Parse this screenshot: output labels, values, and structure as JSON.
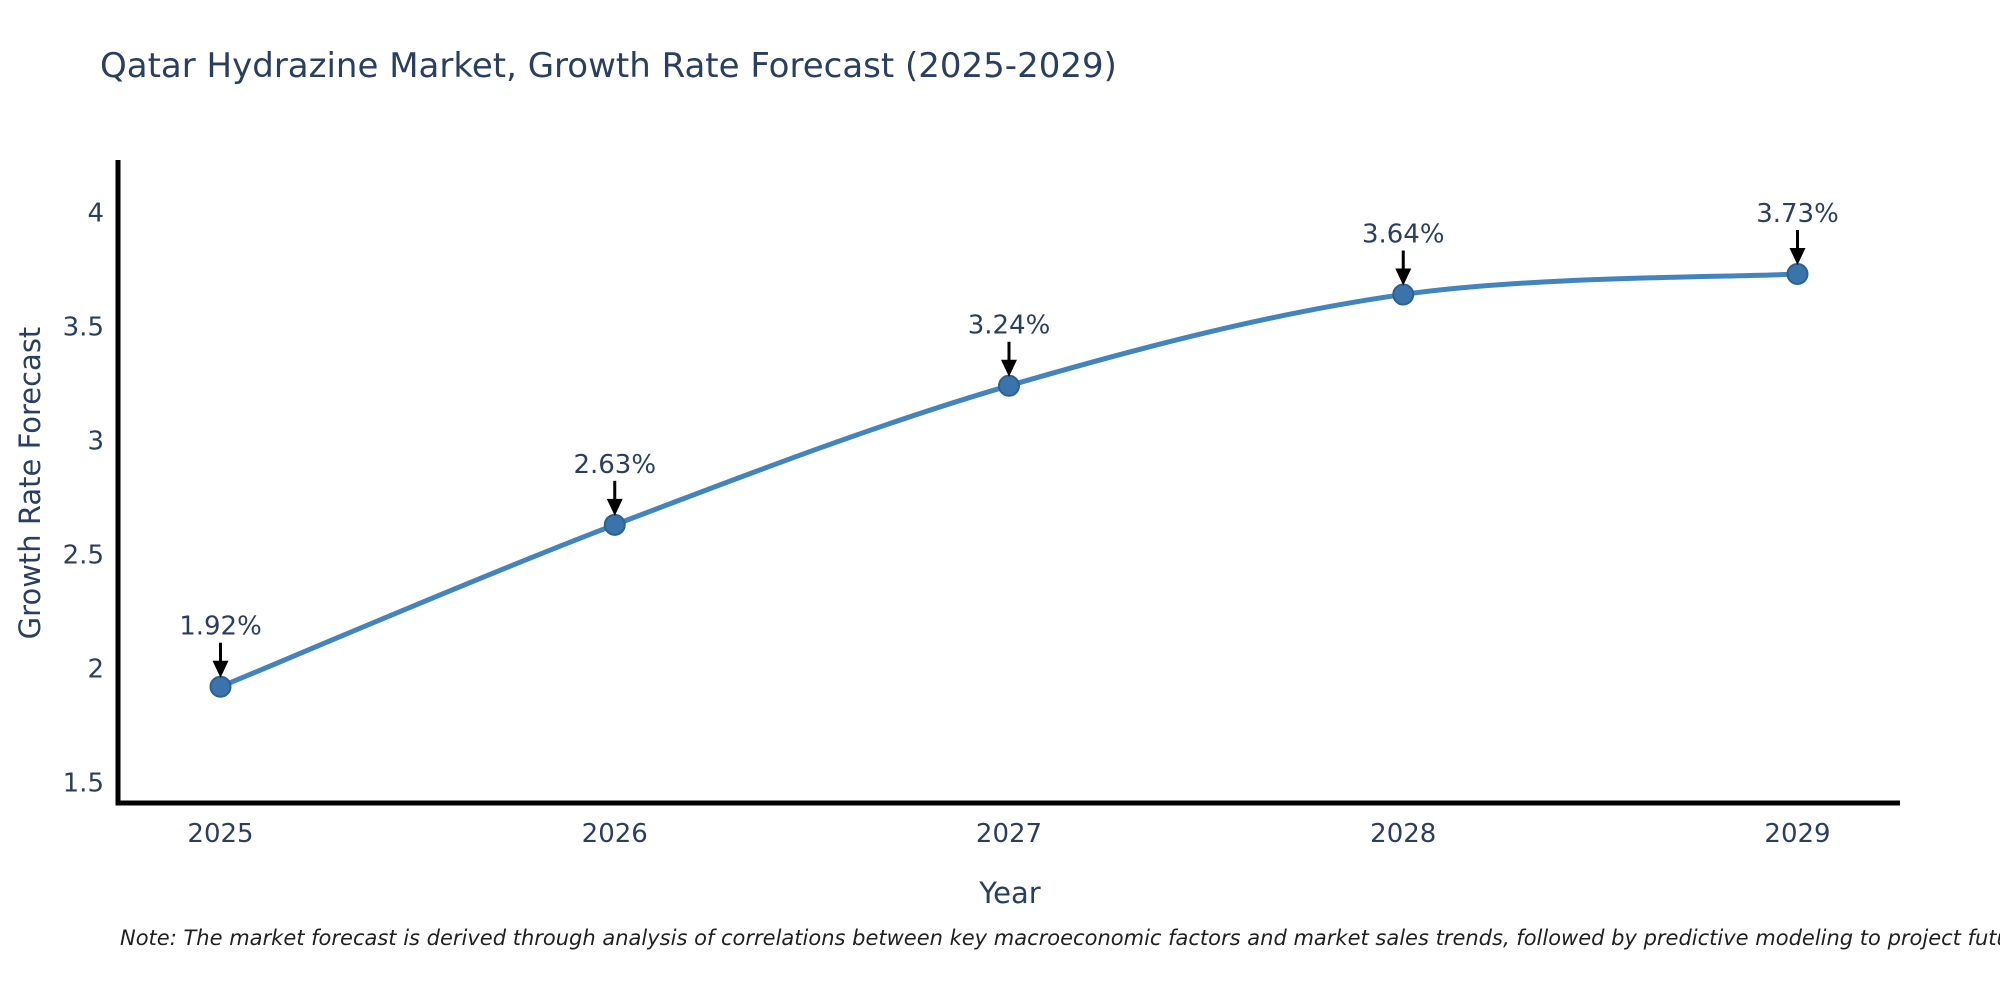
{
  "note": "Note: The market forecast is derived through analysis of correlations between key macroeconomic factors and market sales trends, followed by predictive modeling to project future sales",
  "chart_data": {
    "type": "line",
    "title": "Qatar Hydrazine Market, Growth Rate Forecast (2025-2029)",
    "xlabel": "Year",
    "ylabel": "Growth Rate Forecast",
    "x": [
      2025,
      2026,
      2027,
      2028,
      2029
    ],
    "y": [
      1.92,
      2.63,
      3.24,
      3.64,
      3.73
    ],
    "point_labels": [
      "1.92%",
      "2.63%",
      "3.24%",
      "3.64%",
      "3.73%"
    ],
    "x_tick_labels": [
      "2025",
      "2026",
      "2027",
      "2028",
      "2029"
    ],
    "y_tick_labels": [
      "4",
      "3.5",
      "3",
      "2.5",
      "2",
      "1.5"
    ],
    "y_tick_values": [
      4,
      3.5,
      3,
      2.5,
      2,
      1.5
    ],
    "xlim": [
      2024.74,
      2029.26
    ],
    "ylim": [
      1.41,
      4.23
    ],
    "line_shape": "spline",
    "grid": false,
    "legend": "none",
    "colors": {
      "line": "#4384bd",
      "marker_fill": "#3a74ab",
      "marker_edge": "#2d6093",
      "axis": "#000000",
      "text": "#2a3f5f",
      "annotation_text": "#2a3f5f",
      "annotation_arrow": "#000000",
      "background": "#ffffff",
      "note_text": "#1f1f1f"
    }
  }
}
